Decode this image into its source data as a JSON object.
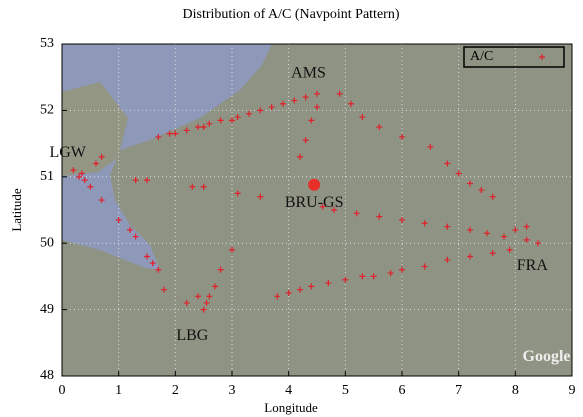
{
  "chart_data": {
    "type": "scatter",
    "title": "Distribution of A/C (Navpoint Pattern)",
    "x_label": "Longitude",
    "y_label": "Latitude",
    "xlim": [
      0,
      9
    ],
    "ylim": [
      48,
      53
    ],
    "xticks": [
      0,
      1,
      2,
      3,
      4,
      5,
      6,
      7,
      8,
      9
    ],
    "yticks": [
      48,
      49,
      50,
      51,
      52,
      53
    ],
    "grid": true,
    "legend": "upper right",
    "series": [
      {
        "name": "A/C",
        "color": "#e0202a",
        "x": [
          1.7,
          1.9,
          2.0,
          2.2,
          2.4,
          2.5,
          2.6,
          2.8,
          3.0,
          3.1,
          3.3,
          3.5,
          3.7,
          3.9,
          4.1,
          4.3,
          4.5,
          0.2,
          0.3,
          0.35,
          0.4,
          0.5,
          0.6,
          0.7,
          0.7,
          1.0,
          1.2,
          1.3,
          1.5,
          1.6,
          1.7,
          2.5,
          2.55,
          2.6,
          2.7,
          2.8,
          3.0,
          2.2,
          2.4,
          1.8,
          3.8,
          4.0,
          4.2,
          4.4,
          4.7,
          5.0,
          5.3,
          5.5,
          5.8,
          6.0,
          6.4,
          6.8,
          7.2,
          7.6,
          7.9,
          8.2,
          8.4,
          4.6,
          4.8,
          5.2,
          5.6,
          6.0,
          6.4,
          6.8,
          7.2,
          7.5,
          7.8,
          8.0,
          8.2,
          4.9,
          5.1,
          5.3,
          5.6,
          6.0,
          6.5,
          6.8,
          7.0,
          7.2,
          7.4,
          7.6,
          4.5,
          4.4,
          4.3,
          4.2,
          3.1,
          3.5,
          2.3,
          2.5,
          1.5,
          1.3
        ],
        "values": [
          51.6,
          51.65,
          51.65,
          51.7,
          51.75,
          51.75,
          51.8,
          51.85,
          51.85,
          51.9,
          51.95,
          52.0,
          52.05,
          52.1,
          52.15,
          52.2,
          52.25,
          51.1,
          51.0,
          51.05,
          50.95,
          50.85,
          51.2,
          51.3,
          50.65,
          50.35,
          50.2,
          50.1,
          49.8,
          49.7,
          49.6,
          49.0,
          49.1,
          49.2,
          49.35,
          49.6,
          49.9,
          49.1,
          49.2,
          49.3,
          49.2,
          49.25,
          49.3,
          49.35,
          49.4,
          49.45,
          49.5,
          49.5,
          49.55,
          49.6,
          49.65,
          49.75,
          49.8,
          49.85,
          49.9,
          50.05,
          50.0,
          50.55,
          50.5,
          50.45,
          50.4,
          50.35,
          50.3,
          50.25,
          50.2,
          50.15,
          50.1,
          50.2,
          50.25,
          52.25,
          52.1,
          51.9,
          51.75,
          51.6,
          51.45,
          51.2,
          51.05,
          50.9,
          50.8,
          50.7,
          52.05,
          51.85,
          51.55,
          51.3,
          50.75,
          50.7,
          50.85,
          50.85,
          50.95,
          50.95
        ]
      }
    ],
    "highlight": {
      "x": 4.45,
      "y": 50.88,
      "color": "#e8302a"
    },
    "annotations": [
      {
        "text": "AMS",
        "x": 4.35,
        "y": 52.55
      },
      {
        "text": "LGW",
        "x": 0.1,
        "y": 51.35
      },
      {
        "text": "BRU-GS",
        "x": 4.45,
        "y": 50.6
      },
      {
        "text": "LBG",
        "x": 2.3,
        "y": 48.6
      },
      {
        "text": "FRA",
        "x": 8.3,
        "y": 49.65
      },
      {
        "text": "Google",
        "x": 8.55,
        "y": 48.28
      }
    ]
  }
}
